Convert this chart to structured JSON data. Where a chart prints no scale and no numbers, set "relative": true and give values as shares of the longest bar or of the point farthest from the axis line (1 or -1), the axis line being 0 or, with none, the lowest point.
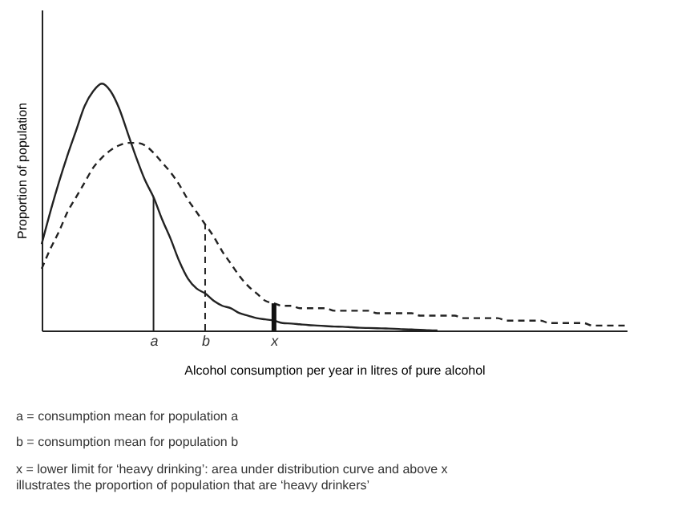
{
  "chart_data": {
    "type": "line",
    "relative": true,
    "xlabel": "Alcohol consumption per year in litres of pure alcohol",
    "ylabel": "Proportion of population",
    "categories": [
      null,
      null,
      null,
      null,
      null,
      null,
      null,
      null,
      null,
      null,
      null,
      null,
      null,
      "a",
      null,
      null,
      null,
      null,
      null,
      "b",
      null,
      null,
      null,
      null,
      null,
      null,
      null,
      "x",
      null,
      null,
      null,
      null,
      null,
      null,
      null,
      null,
      null,
      null,
      null,
      null,
      null,
      null,
      null,
      null,
      null,
      null,
      null,
      null,
      null,
      null,
      null,
      null,
      null,
      null,
      null,
      null,
      null,
      null,
      null,
      null,
      null,
      null,
      null,
      null,
      null,
      null,
      null,
      null,
      null
    ],
    "series": [
      {
        "color": "#222222",
        "line_style": "solid",
        "values": [
          0.35,
          0.48,
          0.6,
          0.71,
          0.81,
          0.91,
          0.97,
          1,
          0.97,
          0.9,
          0.8,
          0.7,
          0.61,
          0.54,
          0.45,
          0.37,
          0.28,
          0.21,
          0.17,
          0.15,
          0.12,
          0.1,
          0.09,
          0.07,
          0.06,
          0.05,
          0.045,
          0.04,
          0.03,
          0.028,
          0.025,
          0.022,
          0.02,
          0.018,
          0.016,
          0.015,
          0.013,
          0.011,
          0.01,
          0.009,
          0.008,
          0.007,
          0.005,
          0.004,
          0.003,
          0.001,
          0,
          null,
          null,
          null,
          null,
          null,
          null,
          null,
          null,
          null,
          null,
          null,
          null,
          null,
          null,
          null,
          null,
          null,
          null,
          null,
          null,
          null,
          null
        ]
      },
      {
        "color": "#222222",
        "line_style": "dashed",
        "values": [
          0.25,
          0.33,
          0.4,
          0.48,
          0.54,
          0.6,
          0.66,
          0.7,
          0.73,
          0.75,
          0.76,
          0.76,
          0.75,
          0.72,
          0.68,
          0.64,
          0.59,
          0.53,
          0.48,
          0.43,
          0.38,
          0.32,
          0.27,
          0.22,
          0.18,
          0.15,
          0.12,
          0.11,
          0.1,
          0.1,
          0.09,
          0.09,
          0.09,
          0.09,
          0.08,
          0.08,
          0.08,
          0.08,
          0.08,
          0.07,
          0.07,
          0.07,
          0.07,
          0.07,
          0.06,
          0.06,
          0.06,
          0.06,
          0.06,
          0.05,
          0.05,
          0.05,
          0.05,
          0.05,
          0.04,
          0.04,
          0.04,
          0.04,
          0.04,
          0.03,
          0.03,
          0.03,
          0.03,
          0.03,
          0.02,
          0.02,
          0.02,
          0.02,
          0.02
        ]
      }
    ],
    "ref_lines": [
      {
        "axis": "x",
        "value": "a",
        "line_style": "solid",
        "color": "#222222"
      },
      {
        "axis": "x",
        "value": "b",
        "line_style": "dashed",
        "color": "#222222"
      },
      {
        "axis": "x",
        "value": "x",
        "color": "#111111"
      }
    ],
    "grid": false,
    "marker": "none",
    "annotations": [
      "a = consumption mean for population a",
      "b = consumption mean for population b",
      "x = lower limit for ‘heavy drinking’: area under distribution curve and above x illustrates the proportion of population that are ‘heavy drinkers’"
    ]
  }
}
